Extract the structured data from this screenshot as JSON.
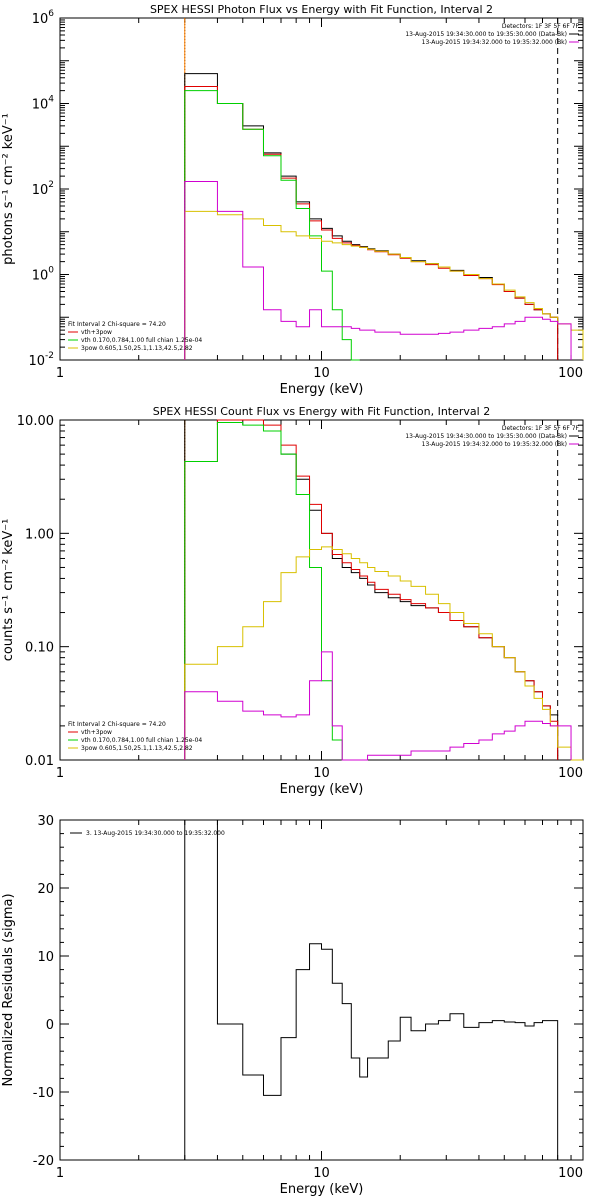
{
  "colors": {
    "black": "#000000",
    "red": "#e00000",
    "green": "#00d000",
    "magenta": "#d000d0",
    "yellow": "#d8c000",
    "orange": "#ff8000"
  },
  "chart_data": [
    {
      "type": "line",
      "title": "SPEX HESSI Photon Flux vs Energy with Fit Function, Interval 2",
      "xlabel": "Energy (keV)",
      "ylabel": "photons s⁻¹ cm⁻² keV⁻¹",
      "xscale": "log",
      "yscale": "log",
      "xlim": [
        1,
        100
      ],
      "ylim": [
        0.01,
        1000000
      ],
      "xticks": [
        {
          "value": 1,
          "label": "1"
        },
        {
          "value": 10,
          "label": "10"
        },
        {
          "value": 100,
          "label": "100"
        }
      ],
      "yticks": [
        {
          "value": 0.01,
          "base": "10",
          "exp": "-2"
        },
        {
          "value": 1,
          "base": "10",
          "exp": "0"
        },
        {
          "value": 100,
          "base": "10",
          "exp": "2"
        },
        {
          "value": 10000,
          "base": "10",
          "exp": "4"
        },
        {
          "value": 1000000,
          "base": "10",
          "exp": "6"
        }
      ],
      "detectors_label": "Detectors: 1F 3F 5F 6F 7F",
      "legend_top": [
        {
          "text": "13-Aug-2015 19:34:30.000 to 19:35:30.000 (Data-Bk)",
          "color": "#000000"
        },
        {
          "text": "13-Aug-2015 19:34:32.000 to 19:35:32.000 (Bk)",
          "color": "#d000d0"
        }
      ],
      "fit_label": "Fit Interval 2   Chi-square = 74.20",
      "legend_bottom": [
        {
          "text": "vth+3pow",
          "color": "#e00000"
        },
        {
          "text": "vth 0.170,0.784,1.00  full chian 1.25e-04",
          "color": "#00d000"
        },
        {
          "text": "3pow 0.605,1.50,25.1,1.13,42.5,2.82",
          "color": "#d8c000"
        }
      ],
      "vlines": [
        {
          "x": 3,
          "style": "dotted",
          "color": "#000000"
        },
        {
          "x": 3,
          "style": "solid",
          "color": "#ff8000"
        },
        {
          "x": 80,
          "style": "dashed",
          "color": "#000000"
        }
      ],
      "edges": [
        3,
        3.5,
        4,
        5,
        6,
        7,
        8,
        9,
        10,
        11,
        12,
        13,
        14,
        15,
        16,
        18,
        20,
        22,
        25,
        28,
        31,
        35,
        40,
        45,
        50,
        55,
        60,
        65,
        70,
        75,
        80,
        90,
        100
      ],
      "series": [
        {
          "name": "Data-Bk",
          "color": "#000000",
          "values": [
            50000,
            50000,
            10000,
            3000,
            700,
            200,
            50,
            20,
            12,
            8,
            6,
            5,
            4.5,
            4,
            3.6,
            3,
            2.5,
            2.1,
            1.8,
            1.5,
            1.25,
            1,
            0.85,
            0.6,
            0.4,
            0.28,
            0.2,
            0.15,
            0.12,
            0.1,
            null,
            null
          ]
        },
        {
          "name": "vth+3pow",
          "color": "#e00000",
          "values": [
            25000,
            25000,
            10000,
            2500,
            650,
            180,
            45,
            18,
            11,
            7,
            5.5,
            4.8,
            4.3,
            3.8,
            3.4,
            2.9,
            2.4,
            2,
            1.7,
            1.4,
            1.2,
            0.95,
            0.8,
            0.58,
            0.4,
            0.28,
            0.2,
            0.15,
            0.12,
            0.1,
            null,
            null
          ]
        },
        {
          "name": "vth",
          "color": "#00d000",
          "values": [
            20000,
            20000,
            10000,
            2500,
            600,
            160,
            35,
            8,
            1.2,
            0.15,
            0.03,
            0.01,
            null,
            null,
            null,
            null,
            null,
            null,
            null,
            null,
            null,
            null,
            null,
            null,
            null,
            null,
            null,
            null,
            null,
            null,
            null,
            null
          ]
        },
        {
          "name": "3pow",
          "color": "#d8c000",
          "values": [
            30,
            30,
            25,
            20,
            14,
            10,
            8,
            7,
            6,
            5.5,
            5,
            4.6,
            4.3,
            3.9,
            3.5,
            3,
            2.5,
            2,
            1.8,
            1.5,
            1.2,
            1,
            0.8,
            0.6,
            0.43,
            0.3,
            0.22,
            0.16,
            0.12,
            0.1,
            0.07,
            0.05
          ]
        },
        {
          "name": "Bk",
          "color": "#d000d0",
          "values": [
            150,
            150,
            30,
            1.5,
            0.15,
            0.08,
            0.06,
            0.15,
            0.06,
            0.06,
            0.06,
            0.055,
            0.05,
            0.05,
            0.045,
            0.045,
            0.04,
            0.04,
            0.04,
            0.042,
            0.045,
            0.05,
            0.055,
            0.06,
            0.07,
            0.08,
            0.1,
            0.1,
            0.09,
            0.08,
            0.07,
            null
          ]
        }
      ]
    },
    {
      "type": "line",
      "title": "SPEX HESSI Count Flux vs Energy with Fit Function, Interval 2",
      "xlabel": "Energy (keV)",
      "ylabel": "counts s⁻¹ cm⁻² keV⁻¹",
      "xscale": "log",
      "yscale": "log",
      "xlim": [
        1,
        100
      ],
      "ylim": [
        0.01,
        10
      ],
      "xticks": [
        {
          "value": 1,
          "label": "1"
        },
        {
          "value": 10,
          "label": "10"
        },
        {
          "value": 100,
          "label": "100"
        }
      ],
      "yticks": [
        {
          "value": 0.01,
          "label": "0.01"
        },
        {
          "value": 0.1,
          "label": "0.10"
        },
        {
          "value": 1,
          "label": "1.00"
        },
        {
          "value": 10,
          "label": "10.00"
        }
      ],
      "detectors_label": "Detectors: 1F 3F 5F 6F 7F",
      "legend_top": [
        {
          "text": "13-Aug-2015 19:34:30.000 to 19:35:30.000 (Data-Bk)",
          "color": "#000000"
        },
        {
          "text": "13-Aug-2015 19:34:32.000 to 19:35:32.000 (Bk)",
          "color": "#d000d0"
        }
      ],
      "fit_label": "Fit Interval 2   Chi-square = 74.20",
      "legend_bottom": [
        {
          "text": "vth+3pow",
          "color": "#e00000"
        },
        {
          "text": "vth 0.170,0.784,1.00  full chian 1.25e-04",
          "color": "#00d000"
        },
        {
          "text": "3pow 0.605,1.50,25.1,1.13,42.5,2.82",
          "color": "#d8c000"
        }
      ],
      "vlines": [
        {
          "x": 3,
          "style": "dotted",
          "color": "#000000"
        },
        {
          "x": 3,
          "style": "solid",
          "color": "#ff8000"
        },
        {
          "x": 80,
          "style": "dashed",
          "color": "#000000"
        }
      ],
      "edges": [
        3,
        3.5,
        4,
        5,
        6,
        7,
        8,
        9,
        10,
        11,
        12,
        13,
        14,
        15,
        16,
        18,
        20,
        22,
        25,
        28,
        31,
        35,
        40,
        45,
        50,
        55,
        60,
        65,
        70,
        75,
        80,
        90,
        100
      ],
      "series": [
        {
          "name": "Data-Bk",
          "color": "#000000",
          "values": [
            10,
            10,
            10,
            10,
            8,
            5,
            3,
            1.6,
            1,
            0.6,
            0.5,
            0.45,
            0.4,
            0.35,
            0.3,
            0.27,
            0.25,
            0.23,
            0.22,
            0.2,
            0.17,
            0.15,
            0.12,
            0.1,
            0.08,
            0.06,
            0.05,
            0.04,
            0.03,
            0.025,
            null,
            null
          ]
        },
        {
          "name": "vth+3pow",
          "color": "#e00000",
          "values": [
            4.3,
            4.3,
            10,
            10,
            9,
            6,
            3.2,
            1.8,
            1,
            0.65,
            0.55,
            0.48,
            0.42,
            0.37,
            0.32,
            0.29,
            0.26,
            0.24,
            0.22,
            0.2,
            0.17,
            0.15,
            0.12,
            0.1,
            0.08,
            0.06,
            0.05,
            0.04,
            0.03,
            0.022,
            null,
            null
          ]
        },
        {
          "name": "vth",
          "color": "#00d000",
          "values": [
            4.3,
            4.3,
            9.5,
            9,
            8,
            5,
            2.2,
            0.5,
            0.05,
            0.015,
            0.008,
            null,
            null,
            null,
            null,
            null,
            null,
            null,
            null,
            null,
            null,
            null,
            null,
            null,
            null,
            null,
            null,
            null,
            null,
            null,
            null,
            null
          ]
        },
        {
          "name": "3pow",
          "color": "#d8c000",
          "values": [
            0.07,
            0.07,
            0.1,
            0.15,
            0.25,
            0.45,
            0.62,
            0.72,
            0.76,
            0.72,
            0.66,
            0.6,
            0.55,
            0.5,
            0.46,
            0.42,
            0.38,
            0.34,
            0.29,
            0.24,
            0.2,
            0.16,
            0.13,
            0.1,
            0.08,
            0.06,
            0.045,
            0.035,
            0.028,
            0.02,
            0.013,
            0.01
          ]
        },
        {
          "name": "Bk",
          "color": "#d000d0",
          "values": [
            0.04,
            0.04,
            0.033,
            0.027,
            0.025,
            0.024,
            0.025,
            0.05,
            0.09,
            0.02,
            0.008,
            0.01,
            0.01,
            0.011,
            0.011,
            0.011,
            0.011,
            0.012,
            0.012,
            0.012,
            0.013,
            0.014,
            0.015,
            0.017,
            0.018,
            0.02,
            0.022,
            0.022,
            0.021,
            0.02,
            0.02,
            null
          ]
        }
      ]
    },
    {
      "type": "line",
      "title": "",
      "xlabel": "Energy (keV)",
      "ylabel": "Normalized Residuals (sigma)",
      "xscale": "log",
      "yscale": "linear",
      "xlim": [
        1,
        100
      ],
      "ylim": [
        -20,
        30
      ],
      "xticks": [
        {
          "value": 1,
          "label": "1"
        },
        {
          "value": 10,
          "label": "10"
        },
        {
          "value": 100,
          "label": "100"
        }
      ],
      "yticks": [
        {
          "value": -20,
          "label": "-20"
        },
        {
          "value": -10,
          "label": "-10"
        },
        {
          "value": 0,
          "label": "0"
        },
        {
          "value": 10,
          "label": "10"
        },
        {
          "value": 20,
          "label": "20"
        },
        {
          "value": 30,
          "label": "30"
        }
      ],
      "legend_top": [
        {
          "text": "3. 13-Aug-2015 19:34:30.000 to 19:35:32.000",
          "color": "#000000"
        }
      ],
      "edges": [
        3,
        3.5,
        4,
        5,
        6,
        7,
        8,
        9,
        10,
        11,
        12,
        13,
        14,
        15,
        16,
        18,
        20,
        22,
        25,
        28,
        31,
        35,
        40,
        45,
        50,
        55,
        60,
        65,
        70,
        75,
        80
      ],
      "series": [
        {
          "name": "residuals",
          "color": "#000000",
          "values": [
            30,
            30,
            0,
            -7.5,
            -10.5,
            -2,
            8,
            11.8,
            11,
            6,
            3,
            -5,
            -7.8,
            -5,
            -5,
            -2.5,
            1,
            -1,
            0,
            0.5,
            1.5,
            -0.5,
            0.2,
            0.5,
            0.3,
            0.2,
            -0.3,
            0.2,
            0.5,
            0.5
          ]
        }
      ]
    }
  ]
}
